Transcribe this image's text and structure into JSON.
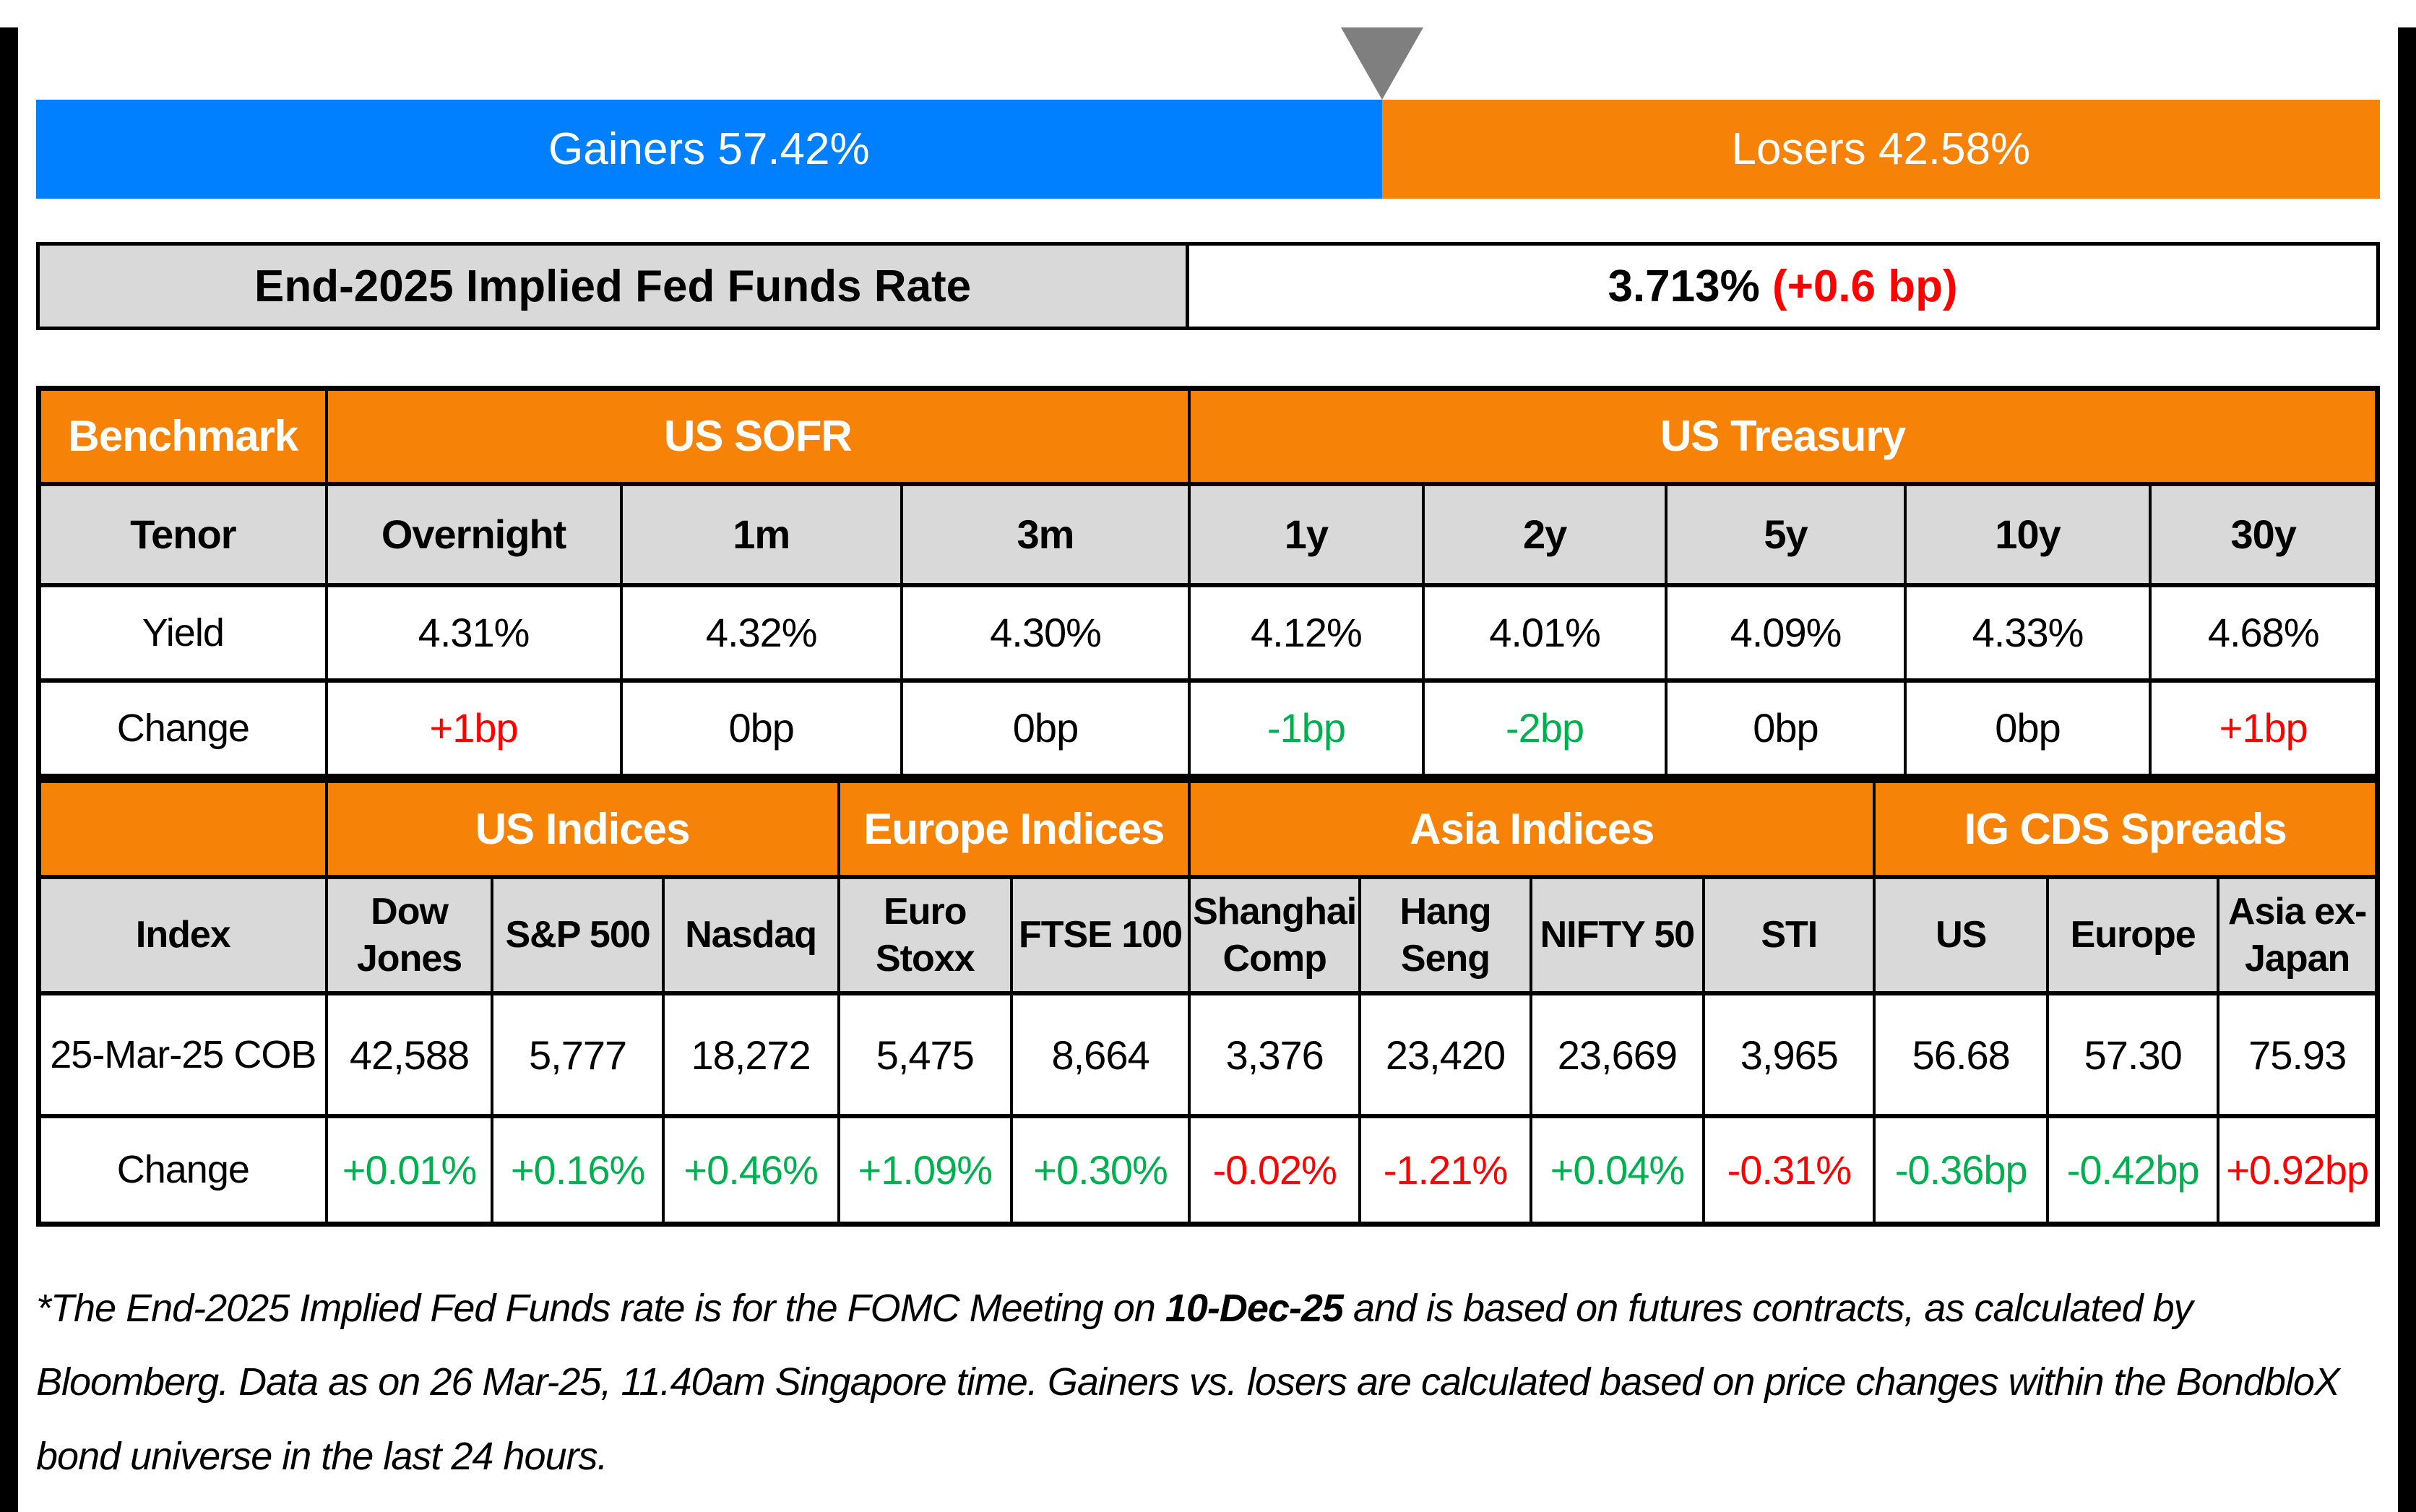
{
  "colors": {
    "gainers_blue": "#0080FE",
    "losers_orange": "#F68307",
    "header_orange": "#F68307",
    "cell_gray": "#D9D9D9",
    "marker_gray": "#7F7F7F",
    "positive_green": "#00B050",
    "negative_red": "#FF0000"
  },
  "split_bar": {
    "gainers_pct": 57.42,
    "losers_pct": 42.58,
    "gainers_label": "Gainers 57.42%",
    "losers_label": "Losers 42.58%"
  },
  "fed_funds": {
    "label": "End-2025 Implied Fed Funds Rate",
    "value": "3.713% ",
    "change": "(+0.6 bp)"
  },
  "benchmark_table": {
    "corner": "Benchmark",
    "groups": [
      {
        "label": "US SOFR"
      },
      {
        "label": "US Treasury"
      }
    ],
    "tenor_label": "Tenor",
    "yield_label": "Yield",
    "change_label": "Change",
    "columns": [
      {
        "tenor": "Overnight",
        "yield": "4.31%",
        "change": "+1bp"
      },
      {
        "tenor": "1m",
        "yield": "4.32%",
        "change": "0bp"
      },
      {
        "tenor": "3m",
        "yield": "4.30%",
        "change": "0bp"
      },
      {
        "tenor": "1y",
        "yield": "4.12%",
        "change": "-1bp"
      },
      {
        "tenor": "2y",
        "yield": "4.01%",
        "change": "-2bp"
      },
      {
        "tenor": "5y",
        "yield": "4.09%",
        "change": "0bp"
      },
      {
        "tenor": "10y",
        "yield": "4.33%",
        "change": "0bp"
      },
      {
        "tenor": "30y",
        "yield": "4.68%",
        "change": "+1bp"
      }
    ]
  },
  "indices_table": {
    "index_label": "Index",
    "cob_label": "25-Mar-25 COB",
    "change_label": "Change",
    "groups": [
      {
        "label": "US Indices"
      },
      {
        "label": "Europe Indices"
      },
      {
        "label": "Asia Indices"
      },
      {
        "label": "IG CDS Spreads"
      }
    ],
    "columns": [
      {
        "name": "Dow Jones",
        "close": "42,588",
        "change": "+0.01%"
      },
      {
        "name": "S&P 500",
        "close": "5,777",
        "change": "+0.16%"
      },
      {
        "name": "Nasdaq",
        "close": "18,272",
        "change": "+0.46%"
      },
      {
        "name": "Euro Stoxx",
        "close": "5,475",
        "change": "+1.09%"
      },
      {
        "name": "FTSE 100",
        "close": "8,664",
        "change": "+0.30%"
      },
      {
        "name": "Shanghai Comp",
        "close": "3,376",
        "change": "-0.02%"
      },
      {
        "name": "Hang Seng",
        "close": "23,420",
        "change": "-1.21%"
      },
      {
        "name": "NIFTY 50",
        "close": "23,669",
        "change": "+0.04%"
      },
      {
        "name": "STI",
        "close": "3,965",
        "change": "-0.31%"
      },
      {
        "name": "US",
        "close": "56.68",
        "change": "-0.36bp"
      },
      {
        "name": "Europe",
        "close": "57.30",
        "change": "-0.42bp"
      },
      {
        "name": "Asia ex-Japan",
        "close": "75.93",
        "change": "+0.92bp"
      }
    ]
  },
  "footnote": {
    "part1": "*The End-2025 Implied Fed Funds rate is for the FOMC Meeting on ",
    "bold": "10-Dec-25",
    "part2": " and is based on futures contracts, as calculated by Bloomberg. Data as on 26 Mar-25, 11.40am Singapore time. Gainers vs. losers are calculated based on price changes within the BondbloX bond universe in the last 24 hours."
  },
  "chart_data": [
    {
      "type": "bar",
      "title": "Gainers vs Losers (stacked horizontal bar)",
      "categories": [
        "Gainers",
        "Losers"
      ],
      "values": [
        57.42,
        42.58
      ],
      "unit": "%",
      "colors": [
        "#0080FE",
        "#F68307"
      ],
      "annotation_marker": "gray down-triangle at 57.42% split"
    },
    {
      "type": "table",
      "title": "End-2025 Implied Fed Funds Rate",
      "value_pct": 3.713,
      "change_bp": 0.6
    },
    {
      "type": "table",
      "title": "Benchmark: US SOFR & US Treasury",
      "categories": [
        "Overnight",
        "1m",
        "3m",
        "1y",
        "2y",
        "5y",
        "10y",
        "30y"
      ],
      "series": [
        {
          "name": "Yield %",
          "values": [
            4.31,
            4.32,
            4.3,
            4.12,
            4.01,
            4.09,
            4.33,
            4.68
          ]
        },
        {
          "name": "Change bp",
          "values": [
            1,
            0,
            0,
            -1,
            -2,
            0,
            0,
            1
          ]
        }
      ]
    },
    {
      "type": "table",
      "title": "Indices & IG CDS Spreads (25-Mar-25 COB)",
      "categories": [
        "Dow Jones",
        "S&P 500",
        "Nasdaq",
        "Euro Stoxx",
        "FTSE 100",
        "Shanghai Comp",
        "Hang Seng",
        "NIFTY 50",
        "STI",
        "US CDS",
        "Europe CDS",
        "Asia ex-Japan CDS"
      ],
      "series": [
        {
          "name": "Close",
          "values": [
            42588,
            5777,
            18272,
            5475,
            8664,
            3376,
            23420,
            23669,
            3965,
            56.68,
            57.3,
            75.93
          ]
        },
        {
          "name": "Change",
          "values": [
            "+0.01%",
            "+0.16%",
            "+0.46%",
            "+1.09%",
            "+0.30%",
            "-0.02%",
            "-1.21%",
            "+0.04%",
            "-0.31%",
            "-0.36bp",
            "-0.42bp",
            "+0.92bp"
          ]
        }
      ]
    }
  ]
}
